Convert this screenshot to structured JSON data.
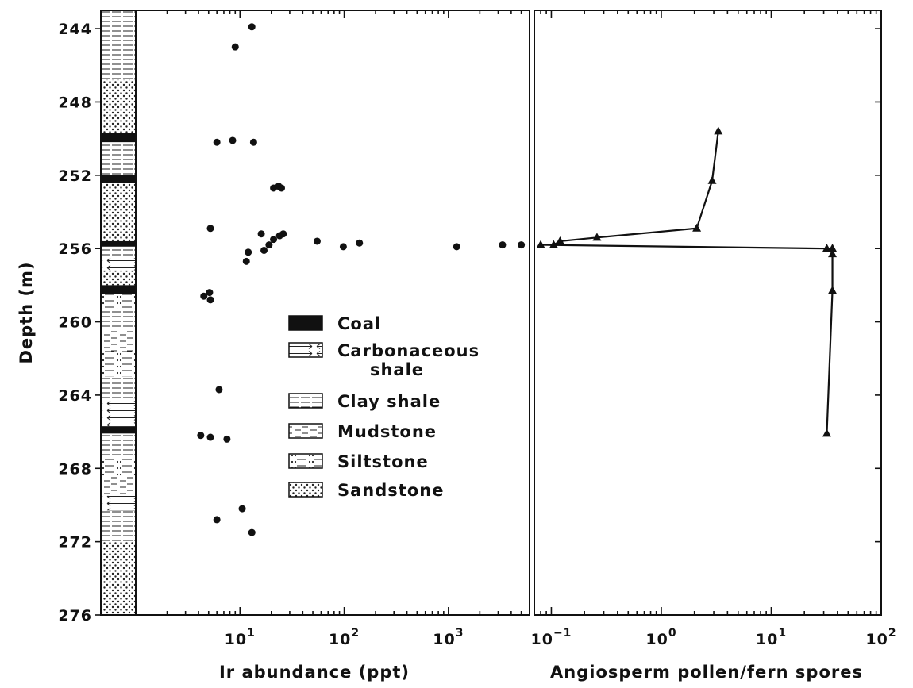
{
  "chart_data": [
    {
      "type": "scatter",
      "xscale": "log",
      "xlim": [
        1,
        6000
      ],
      "ylim": [
        243,
        276
      ],
      "y_inverted": true,
      "ylabel": "Depth (m)",
      "xlabel": "Ir abundance (ppt)",
      "y_ticks": [
        "244",
        "248",
        "252",
        "256",
        "260",
        "264",
        "268",
        "272",
        "276"
      ],
      "y_tick_values": [
        244,
        248,
        252,
        256,
        260,
        264,
        268,
        272,
        276
      ],
      "x_ticks": [
        {
          "base": "10",
          "exp": "1",
          "value": 10
        },
        {
          "base": "10",
          "exp": "2",
          "value": 100
        },
        {
          "base": "10",
          "exp": "3",
          "value": 1000
        }
      ],
      "points": [
        {
          "x": 13,
          "y": 243.9
        },
        {
          "x": 9,
          "y": 245.0
        },
        {
          "x": 6,
          "y": 250.2
        },
        {
          "x": 8.5,
          "y": 250.1
        },
        {
          "x": 13.5,
          "y": 250.2
        },
        {
          "x": 21,
          "y": 252.7
        },
        {
          "x": 23.5,
          "y": 252.6
        },
        {
          "x": 25,
          "y": 252.7
        },
        {
          "x": 5.2,
          "y": 254.9
        },
        {
          "x": 16,
          "y": 255.2
        },
        {
          "x": 21,
          "y": 255.5
        },
        {
          "x": 24,
          "y": 255.3
        },
        {
          "x": 26,
          "y": 255.2
        },
        {
          "x": 19,
          "y": 255.8
        },
        {
          "x": 17,
          "y": 256.1
        },
        {
          "x": 12,
          "y": 256.2
        },
        {
          "x": 11.5,
          "y": 256.7
        },
        {
          "x": 55,
          "y": 255.6
        },
        {
          "x": 98,
          "y": 255.9
        },
        {
          "x": 140,
          "y": 255.7
        },
        {
          "x": 1200,
          "y": 255.9
        },
        {
          "x": 3300,
          "y": 255.8
        },
        {
          "x": 5000,
          "y": 255.8
        },
        {
          "x": 4.5,
          "y": 258.6
        },
        {
          "x": 5.1,
          "y": 258.4
        },
        {
          "x": 5.2,
          "y": 258.8
        },
        {
          "x": 6.3,
          "y": 263.7
        },
        {
          "x": 4.2,
          "y": 266.2
        },
        {
          "x": 5.2,
          "y": 266.3
        },
        {
          "x": 7.5,
          "y": 266.4
        },
        {
          "x": 10.5,
          "y": 270.2
        },
        {
          "x": 6,
          "y": 270.8
        },
        {
          "x": 13,
          "y": 271.5
        }
      ]
    },
    {
      "type": "line",
      "xscale": "log",
      "xlim": [
        0.07,
        100
      ],
      "ylim": [
        243,
        276
      ],
      "y_inverted": true,
      "xlabel": "Angiosperm pollen/fern spores",
      "x_ticks": [
        {
          "base": "10",
          "exp": "−1",
          "value": 0.1
        },
        {
          "base": "10",
          "exp": "0",
          "value": 1
        },
        {
          "base": "10",
          "exp": "1",
          "value": 10
        },
        {
          "base": "10",
          "exp": "2",
          "value": 100
        }
      ],
      "marker": "triangle",
      "points": [
        {
          "x": 3.3,
          "y": 249.6
        },
        {
          "x": 2.9,
          "y": 252.3
        },
        {
          "x": 2.1,
          "y": 254.9
        },
        {
          "x": 0.26,
          "y": 255.4
        },
        {
          "x": 0.12,
          "y": 255.6
        },
        {
          "x": 0.105,
          "y": 255.8
        },
        {
          "x": 0.08,
          "y": 255.8
        },
        {
          "x": 32,
          "y": 256.0
        },
        {
          "x": 36,
          "y": 256.0
        },
        {
          "x": 36,
          "y": 256.3
        },
        {
          "x": 36,
          "y": 258.3
        },
        {
          "x": 32,
          "y": 266.1
        }
      ]
    }
  ],
  "legend": {
    "items": [
      {
        "label": "Coal",
        "pattern": "coal"
      },
      {
        "label": "Carbonaceous",
        "label2": "shale",
        "pattern": "carbonaceous"
      },
      {
        "label": "Clay shale",
        "pattern": "clay"
      },
      {
        "label": "Mudstone",
        "pattern": "mud"
      },
      {
        "label": "Siltstone",
        "pattern": "silt"
      },
      {
        "label": "Sandstone",
        "pattern": "sand"
      }
    ]
  },
  "lithology_column": [
    {
      "top": 243,
      "bottom": 246.8,
      "type": "clay"
    },
    {
      "top": 246.8,
      "bottom": 249.7,
      "type": "sand"
    },
    {
      "top": 249.7,
      "bottom": 250.2,
      "type": "coal"
    },
    {
      "top": 250.2,
      "bottom": 252.0,
      "type": "clay"
    },
    {
      "top": 252.0,
      "bottom": 252.4,
      "type": "coal"
    },
    {
      "top": 252.4,
      "bottom": 255.6,
      "type": "sand"
    },
    {
      "top": 255.6,
      "bottom": 255.9,
      "type": "coal"
    },
    {
      "top": 255.9,
      "bottom": 256.4,
      "type": "clay"
    },
    {
      "top": 256.4,
      "bottom": 257.2,
      "type": "carbonaceous"
    },
    {
      "top": 257.2,
      "bottom": 258.0,
      "type": "sand"
    },
    {
      "top": 258.0,
      "bottom": 258.5,
      "type": "coal"
    },
    {
      "top": 258.5,
      "bottom": 259.3,
      "type": "silt"
    },
    {
      "top": 259.3,
      "bottom": 260.4,
      "type": "clay"
    },
    {
      "top": 260.4,
      "bottom": 261.6,
      "type": "mud"
    },
    {
      "top": 261.6,
      "bottom": 263.0,
      "type": "silt"
    },
    {
      "top": 263.0,
      "bottom": 264.2,
      "type": "clay"
    },
    {
      "top": 264.2,
      "bottom": 265.7,
      "type": "carbonaceous"
    },
    {
      "top": 265.7,
      "bottom": 266.1,
      "type": "coal"
    },
    {
      "top": 266.1,
      "bottom": 267.4,
      "type": "clay"
    },
    {
      "top": 267.4,
      "bottom": 268.4,
      "type": "silt"
    },
    {
      "top": 268.4,
      "bottom": 269.5,
      "type": "mud"
    },
    {
      "top": 269.5,
      "bottom": 270.3,
      "type": "carbonaceous"
    },
    {
      "top": 270.3,
      "bottom": 272.0,
      "type": "clay"
    },
    {
      "top": 272.0,
      "bottom": 276.0,
      "type": "sand"
    }
  ]
}
